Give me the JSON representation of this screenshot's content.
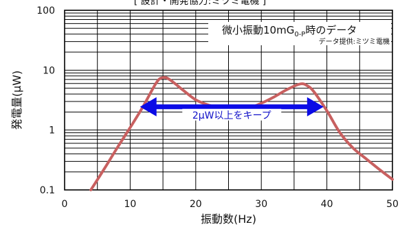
{
  "chart_data": {
    "type": "line",
    "title": "[ 設計・開発協力:ミツミ電機 ]",
    "xlabel": "振動数(Hz)",
    "ylabel": "発電量(μW)",
    "xlim": [
      0,
      50
    ],
    "ylim": [
      0.1,
      100
    ],
    "y_scale": "log",
    "grid": true,
    "x_ticks": [
      "0",
      "10",
      "20",
      "30",
      "40",
      "50"
    ],
    "y_ticks": [
      "0.1",
      "1",
      "10",
      "100"
    ],
    "series": [
      {
        "color": "#c86060",
        "x": [
          4,
          6,
          8,
          10,
          12,
          14,
          15,
          16,
          18,
          20,
          22,
          24,
          26,
          28,
          30,
          32,
          34,
          36,
          37,
          38,
          40,
          42,
          44,
          46,
          48,
          50
        ],
        "y": [
          0.1,
          0.22,
          0.5,
          1.1,
          2.5,
          6.2,
          7.5,
          7.0,
          4.7,
          3.2,
          2.6,
          2.3,
          2.2,
          2.3,
          2.8,
          3.6,
          4.8,
          5.9,
          5.5,
          4.4,
          2.1,
          0.9,
          0.5,
          0.33,
          0.22,
          0.15
        ]
      }
    ],
    "annotations": {
      "condition_prefix": "微小振動10mG",
      "condition_subscript": "0-P",
      "condition_suffix": "時のデータ",
      "source": "データ提供:ミツミ電機",
      "range_label": "2μW以上をキープ",
      "range_x": [
        11.5,
        39.5
      ],
      "range_y": 2.2
    },
    "colors": {
      "line": "#c86060",
      "arrow": "#0a0ae6",
      "callout_text": "#1010c8"
    }
  }
}
